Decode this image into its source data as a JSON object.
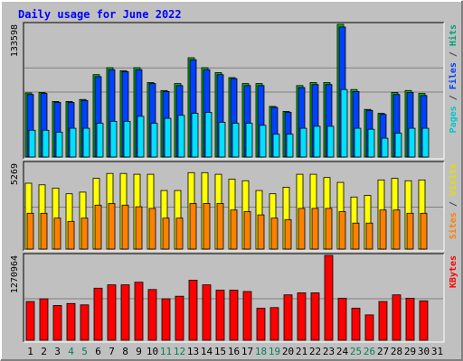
{
  "chart_data": [
    {
      "type": "bar",
      "title": "Daily usage for June 2022",
      "panel": "top",
      "ymax_label": "133598",
      "ylim": [
        0,
        133598
      ],
      "legend": [
        {
          "text": "Pages",
          "color": "#00c8c8"
        },
        {
          "text": " / ",
          "color": "#404040"
        },
        {
          "text": "Files",
          "color": "#0040ff"
        },
        {
          "text": " / ",
          "color": "#404040"
        },
        {
          "text": "Hits",
          "color": "#00a078"
        }
      ],
      "categories": [
        "1",
        "2",
        "3",
        "4",
        "5",
        "6",
        "7",
        "8",
        "9",
        "10",
        "11",
        "12",
        "13",
        "14",
        "15",
        "16",
        "17",
        "18",
        "19",
        "20",
        "21",
        "22",
        "23",
        "24",
        "25",
        "26",
        "27",
        "28",
        "29",
        "30",
        "31"
      ],
      "series": [
        {
          "name": "Hits",
          "color": "#00c000",
          "values": [
            64500,
            65000,
            56000,
            56000,
            58000,
            83000,
            90000,
            87000,
            90000,
            75000,
            67000,
            74000,
            100000,
            90000,
            85000,
            80000,
            74000,
            74000,
            51000,
            46000,
            72000,
            75000,
            75000,
            133598,
            68000,
            48000,
            44000,
            65000,
            67000,
            64000,
            0
          ]
        },
        {
          "name": "Files",
          "color": "#0040ff",
          "values": [
            63000,
            64000,
            55000,
            55000,
            57000,
            81000,
            88000,
            86000,
            88000,
            74000,
            66000,
            72000,
            98000,
            88000,
            83000,
            79000,
            72000,
            72000,
            50000,
            45000,
            70000,
            73000,
            73000,
            131000,
            66000,
            47000,
            43000,
            63000,
            65000,
            62000,
            0
          ]
        },
        {
          "name": "Pages",
          "color": "#00e0ff",
          "values": [
            27000,
            27000,
            25000,
            29000,
            29000,
            34000,
            36000,
            36000,
            41000,
            34000,
            39000,
            42000,
            44000,
            45000,
            35000,
            34000,
            34000,
            32000,
            23000,
            23000,
            29000,
            31000,
            31000,
            68000,
            29000,
            28000,
            19000,
            24000,
            29000,
            29000,
            0
          ]
        }
      ]
    },
    {
      "type": "bar",
      "panel": "middle",
      "ymax_label": "5269",
      "ylim": [
        0,
        5269
      ],
      "legend": [
        {
          "text": "Sites",
          "color": "#ff8000"
        },
        {
          "text": " / ",
          "color": "#404040"
        },
        {
          "text": "Visits",
          "color": "#e0e000"
        }
      ],
      "categories": [
        "1",
        "2",
        "3",
        "4",
        "5",
        "6",
        "7",
        "8",
        "9",
        "10",
        "11",
        "12",
        "13",
        "14",
        "15",
        "16",
        "17",
        "18",
        "19",
        "20",
        "21",
        "22",
        "23",
        "24",
        "25",
        "26",
        "27",
        "28",
        "29",
        "30",
        "31"
      ],
      "series": [
        {
          "name": "Visits",
          "color": "#ffff00",
          "values": [
            4050,
            3950,
            3750,
            3400,
            3500,
            4350,
            4650,
            4650,
            4600,
            4600,
            3600,
            3600,
            4700,
            4700,
            4600,
            4300,
            4200,
            3600,
            3400,
            3800,
            4600,
            4600,
            4400,
            4100,
            3200,
            3300,
            4250,
            4350,
            4200,
            4250,
            0
          ]
        },
        {
          "name": "Sites",
          "color": "#ff8000",
          "values": [
            2200,
            2200,
            1900,
            1700,
            1900,
            2700,
            2800,
            2700,
            2600,
            2500,
            1900,
            1900,
            2800,
            2800,
            2800,
            2400,
            2300,
            2100,
            1900,
            1800,
            2500,
            2500,
            2500,
            2300,
            1600,
            1600,
            2400,
            2400,
            2200,
            2200,
            0
          ]
        }
      ]
    },
    {
      "type": "bar",
      "panel": "bottom",
      "ymax_label": "1270964",
      "ylim": [
        0,
        1270964
      ],
      "legend": [
        {
          "text": "KBytes",
          "color": "#ff0000"
        }
      ],
      "categories": [
        "1",
        "2",
        "3",
        "4",
        "5",
        "6",
        "7",
        "8",
        "9",
        "10",
        "11",
        "12",
        "13",
        "14",
        "15",
        "16",
        "17",
        "18",
        "19",
        "20",
        "21",
        "22",
        "23",
        "24",
        "25",
        "26",
        "27",
        "28",
        "29",
        "30",
        "31"
      ],
      "series": [
        {
          "name": "KBytes",
          "color": "#ff0000",
          "values": [
            580000,
            620000,
            520000,
            550000,
            530000,
            780000,
            830000,
            830000,
            870000,
            760000,
            620000,
            660000,
            900000,
            830000,
            750000,
            750000,
            730000,
            480000,
            490000,
            680000,
            710000,
            710000,
            1270964,
            630000,
            480000,
            380000,
            580000,
            680000,
            630000,
            590000,
            0
          ]
        }
      ]
    }
  ],
  "x_labels": [
    {
      "text": "1",
      "weekend": false
    },
    {
      "text": "2",
      "weekend": false
    },
    {
      "text": "3",
      "weekend": false
    },
    {
      "text": "4",
      "weekend": true
    },
    {
      "text": "5",
      "weekend": true
    },
    {
      "text": "6",
      "weekend": false
    },
    {
      "text": "7",
      "weekend": false
    },
    {
      "text": "8",
      "weekend": false
    },
    {
      "text": "9",
      "weekend": false
    },
    {
      "text": "10",
      "weekend": false
    },
    {
      "text": "11",
      "weekend": true
    },
    {
      "text": "12",
      "weekend": true
    },
    {
      "text": "13",
      "weekend": false
    },
    {
      "text": "14",
      "weekend": false
    },
    {
      "text": "15",
      "weekend": false
    },
    {
      "text": "16",
      "weekend": false
    },
    {
      "text": "17",
      "weekend": false
    },
    {
      "text": "18",
      "weekend": true
    },
    {
      "text": "19",
      "weekend": true
    },
    {
      "text": "20",
      "weekend": false
    },
    {
      "text": "21",
      "weekend": false
    },
    {
      "text": "22",
      "weekend": false
    },
    {
      "text": "23",
      "weekend": false
    },
    {
      "text": "24",
      "weekend": false
    },
    {
      "text": "25",
      "weekend": true
    },
    {
      "text": "26",
      "weekend": true
    },
    {
      "text": "27",
      "weekend": false
    },
    {
      "text": "28",
      "weekend": false
    },
    {
      "text": "29",
      "weekend": false
    },
    {
      "text": "30",
      "weekend": false
    },
    {
      "text": "31",
      "weekend": false
    }
  ],
  "colors": {
    "background": "#c0c0c0",
    "panel_bg": "#c0c0c0",
    "title": "#0000ff",
    "weekday_label": "#000000",
    "weekend_label": "#00805a",
    "gridline": "#808080",
    "bar_outline": "#000000"
  }
}
